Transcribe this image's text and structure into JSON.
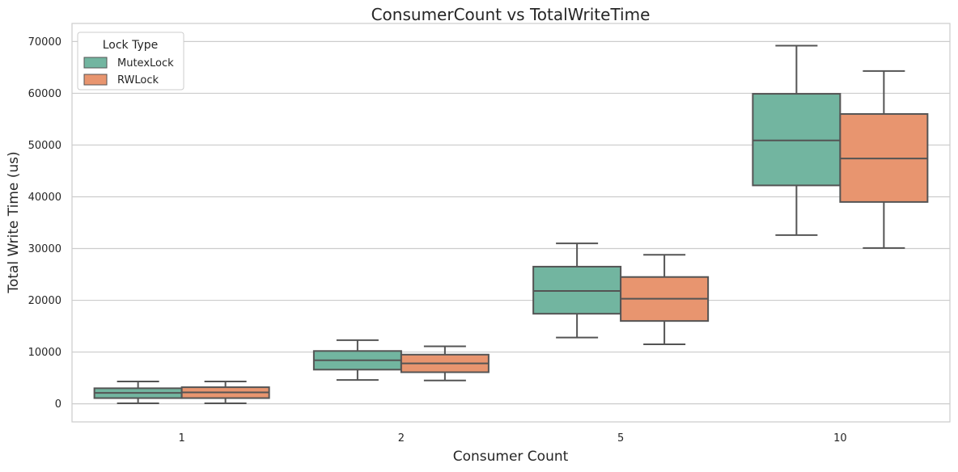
{
  "chart_data": {
    "type": "box",
    "title": "ConsumerCount vs TotalWriteTime",
    "xlabel": "Consumer Count",
    "ylabel": "Total Write Time (us)",
    "categories": [
      "1",
      "2",
      "5",
      "10"
    ],
    "ylim": [
      -3500,
      73500
    ],
    "yticks": [
      0,
      10000,
      20000,
      30000,
      40000,
      50000,
      60000,
      70000
    ],
    "grid": true,
    "legend": {
      "title": "Lock Type",
      "placement": "top-left"
    },
    "series": [
      {
        "name": "MutexLock",
        "color": "#72b5a0",
        "boxes": [
          {
            "whisker_low": 100,
            "q1": 1100,
            "median": 2100,
            "q3": 3000,
            "whisker_high": 4300
          },
          {
            "whisker_low": 4600,
            "q1": 6600,
            "median": 8400,
            "q3": 10200,
            "whisker_high": 12300
          },
          {
            "whisker_low": 12800,
            "q1": 17400,
            "median": 21800,
            "q3": 26500,
            "whisker_high": 31000
          },
          {
            "whisker_low": 32600,
            "q1": 42200,
            "median": 50900,
            "q3": 59900,
            "whisker_high": 69200
          }
        ]
      },
      {
        "name": "RWLock",
        "color": "#e8956f",
        "boxes": [
          {
            "whisker_low": 100,
            "q1": 1100,
            "median": 2200,
            "q3": 3200,
            "whisker_high": 4300
          },
          {
            "whisker_low": 4500,
            "q1": 6100,
            "median": 7800,
            "q3": 9500,
            "whisker_high": 11100
          },
          {
            "whisker_low": 11500,
            "q1": 16000,
            "median": 20300,
            "q3": 24500,
            "whisker_high": 28800
          },
          {
            "whisker_low": 30100,
            "q1": 39000,
            "median": 47400,
            "q3": 56000,
            "whisker_high": 64300
          }
        ]
      }
    ]
  }
}
